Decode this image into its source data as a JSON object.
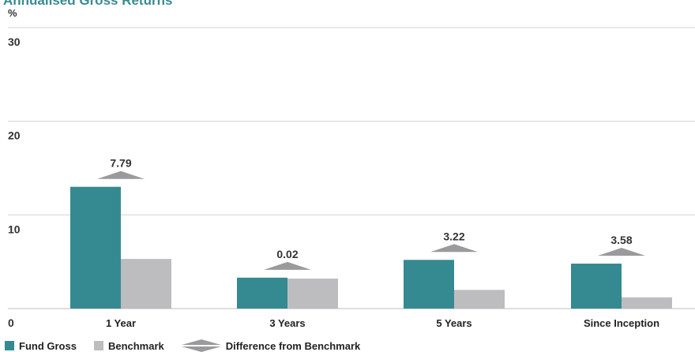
{
  "chart_data": {
    "type": "bar",
    "title": "Annualised Gross Returns",
    "ylabel": "%",
    "ylim": [
      0,
      30
    ],
    "yticks": [
      "0",
      "10",
      "20",
      "30"
    ],
    "categories": [
      "1 Year",
      "3 Years",
      "5 Years",
      "Since Inception"
    ],
    "series": [
      {
        "name": "Fund Gross",
        "values": [
          13.0,
          3.3,
          5.2,
          4.8
        ],
        "color": "#358a91"
      },
      {
        "name": "Benchmark",
        "values": [
          5.3,
          3.2,
          2.0,
          1.2
        ],
        "color": "#bdbdc0"
      }
    ],
    "difference": {
      "name": "Difference from Benchmark",
      "labels": [
        "7.79",
        "0.02",
        "3.22",
        "3.58"
      ],
      "color": "#9a9a9d"
    },
    "grid": true,
    "legend_position": "bottom-left"
  }
}
